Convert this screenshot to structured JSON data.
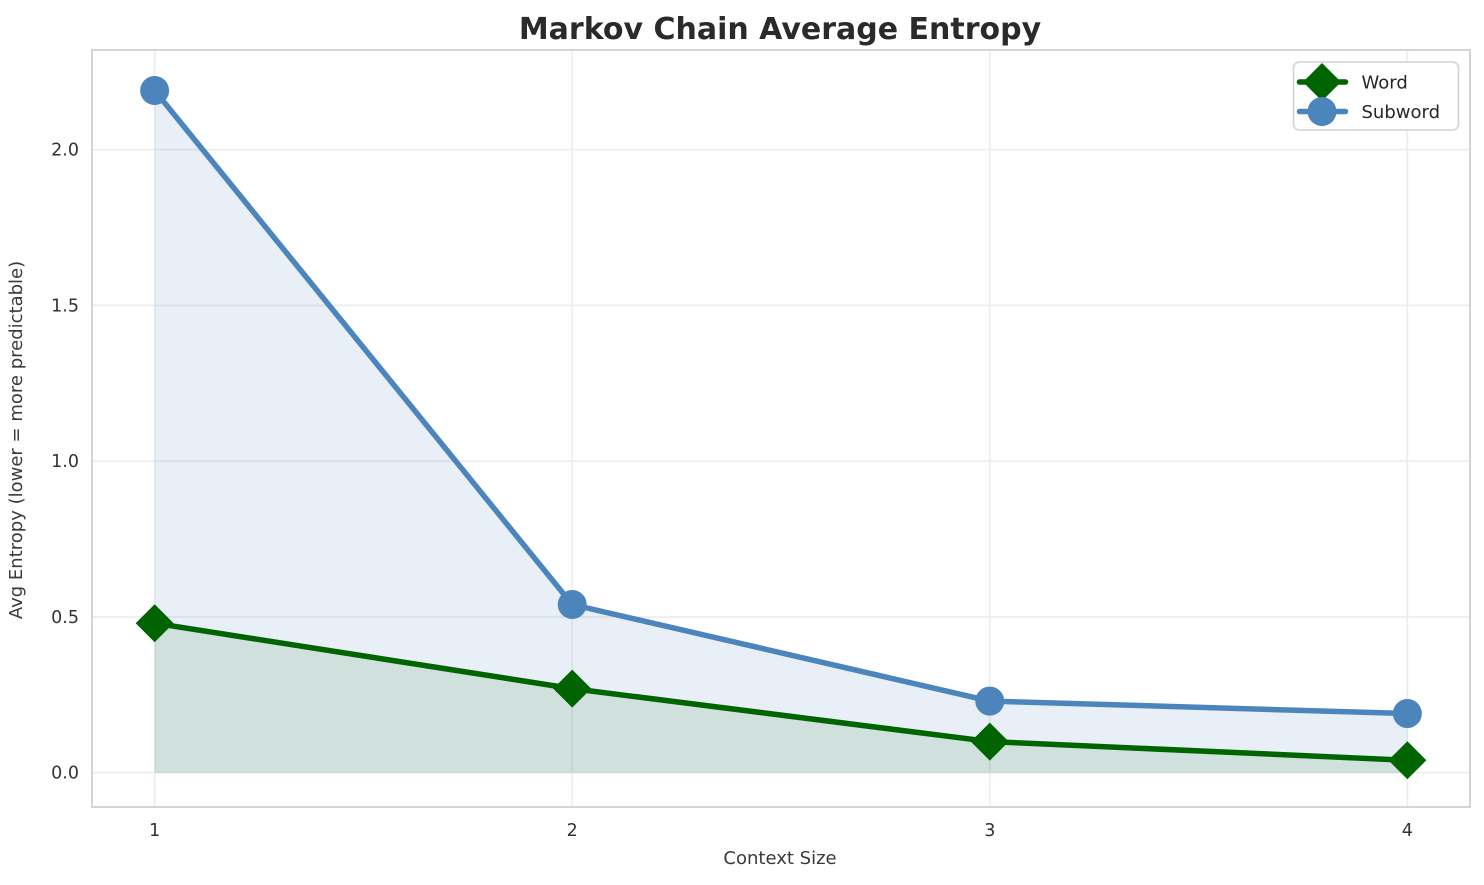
{
  "chart_data": {
    "type": "line",
    "title": "Markov Chain Average Entropy",
    "xlabel": "Context Size",
    "ylabel": "Avg Entropy (lower = more predictable)",
    "x": [
      1,
      2,
      3,
      4
    ],
    "series": [
      {
        "name": "Word",
        "color": "#006400",
        "fill_color": "rgba(0,100,0,0.10)",
        "marker": "diamond",
        "values": [
          0.48,
          0.27,
          0.1,
          0.04
        ]
      },
      {
        "name": "Subword",
        "color": "#4b85bc",
        "fill_color": "rgba(75,133,188,0.13)",
        "marker": "circle",
        "values": [
          2.19,
          0.54,
          0.23,
          0.19
        ]
      }
    ],
    "fill_baseline": 0,
    "xlim": [
      0.85,
      4.15
    ],
    "ylim": [
      -0.11,
      2.32
    ],
    "xticks": {
      "values": [
        1,
        2,
        3,
        4
      ],
      "labels": [
        "1",
        "2",
        "3",
        "4"
      ]
    },
    "yticks": {
      "values": [
        0,
        0.5,
        1,
        1.5,
        2
      ],
      "labels": [
        "0.0",
        "0.5",
        "1.0",
        "1.5",
        "2.0"
      ]
    },
    "grid": true,
    "legend_position": "upper right",
    "legend_entries": [
      "Word",
      "Subword"
    ]
  }
}
